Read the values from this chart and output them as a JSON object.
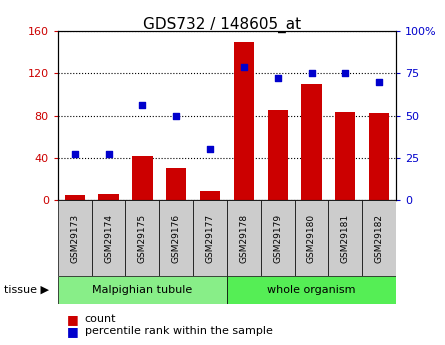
{
  "title": "GDS732 / 148605_at",
  "samples": [
    "GSM29173",
    "GSM29174",
    "GSM29175",
    "GSM29176",
    "GSM29177",
    "GSM29178",
    "GSM29179",
    "GSM29180",
    "GSM29181",
    "GSM29182"
  ],
  "counts": [
    5,
    6,
    42,
    30,
    9,
    150,
    85,
    110,
    83,
    82
  ],
  "percentiles": [
    27,
    27,
    56,
    50,
    30,
    79,
    72,
    75,
    75,
    70
  ],
  "bar_color": "#cc0000",
  "dot_color": "#0000cc",
  "left_ylim": [
    0,
    160
  ],
  "right_ylim": [
    0,
    100
  ],
  "left_yticks": [
    0,
    40,
    80,
    120,
    160
  ],
  "right_yticks": [
    0,
    25,
    50,
    75,
    100
  ],
  "right_yticklabels": [
    "0",
    "25",
    "50",
    "75",
    "100%"
  ],
  "tick_bg": "#cccccc",
  "tissue_groups": [
    {
      "start": 0,
      "end": 4,
      "label": "Malpighian tubule",
      "color": "#88ee88"
    },
    {
      "start": 5,
      "end": 9,
      "label": "whole organism",
      "color": "#55ee55"
    }
  ]
}
